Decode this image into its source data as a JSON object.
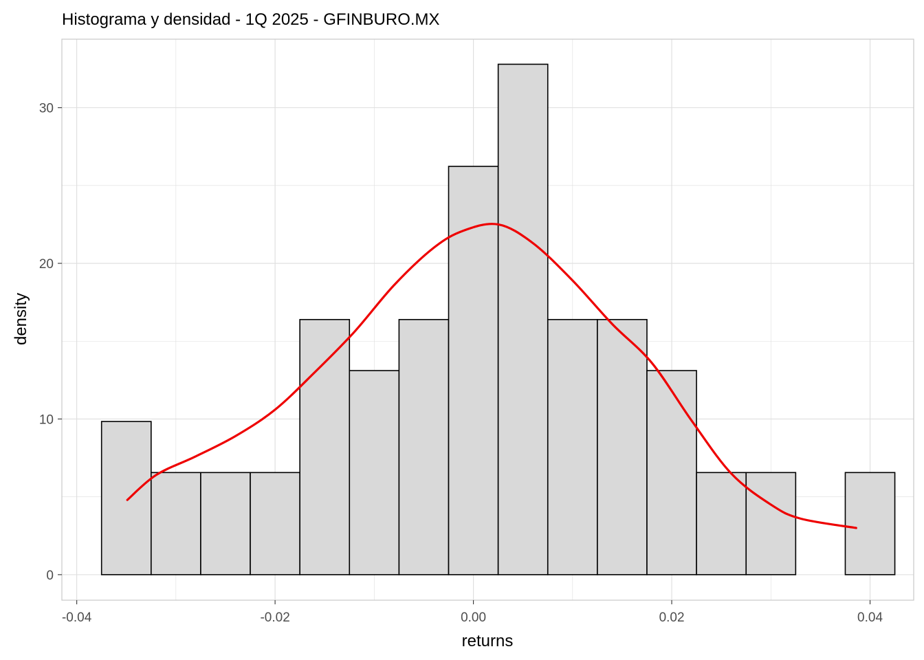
{
  "chart_data": {
    "type": "histogram",
    "title": "Histograma y densidad - 1Q 2025 - GFINBURO.MX",
    "xlabel": "returns",
    "ylabel": "density",
    "xlim": [
      -0.0415,
      0.0444
    ],
    "ylim": [
      -1.64,
      34.4
    ],
    "x_ticks": [
      -0.04,
      -0.02,
      0.0,
      0.02,
      0.04
    ],
    "x_tick_labels": [
      "-0.04",
      "-0.02",
      "0.00",
      "0.02",
      "0.04"
    ],
    "y_ticks": [
      0,
      10,
      20,
      30
    ],
    "y_tick_labels": [
      "0",
      "10",
      "20",
      "30"
    ],
    "bins": {
      "edges": [
        -0.0375,
        -0.0325,
        -0.0275,
        -0.0225,
        -0.0175,
        -0.0125,
        -0.0075,
        -0.0025,
        0.0025,
        0.0075,
        0.0125,
        0.0175,
        0.0225,
        0.0275,
        0.0325,
        0.0375,
        0.0425
      ],
      "densities": [
        9.84,
        6.56,
        6.56,
        6.56,
        16.39,
        13.11,
        16.39,
        26.23,
        32.79,
        16.39,
        16.39,
        13.11,
        6.56,
        6.56,
        0,
        6.56
      ]
    },
    "density_curve": {
      "x": [
        -0.0349,
        -0.032,
        -0.028,
        -0.024,
        -0.02,
        -0.016,
        -0.012,
        -0.008,
        -0.004,
        -0.001,
        0.0025,
        0.006,
        0.01,
        0.014,
        0.018,
        0.022,
        0.026,
        0.03,
        0.033,
        0.0386
      ],
      "y": [
        4.8,
        6.4,
        7.6,
        8.9,
        10.6,
        13.0,
        15.6,
        18.6,
        21.0,
        22.1,
        22.5,
        21.3,
        18.9,
        16.1,
        13.6,
        9.9,
        6.5,
        4.5,
        3.6,
        3.0
      ]
    },
    "grid": true,
    "legend": "none",
    "bar_fill": "#d9d9d9",
    "bar_stroke": "#000000",
    "curve_color": "#ee0000",
    "grid_color": "#dedede",
    "panel_border_color": "#c8c8c8"
  }
}
